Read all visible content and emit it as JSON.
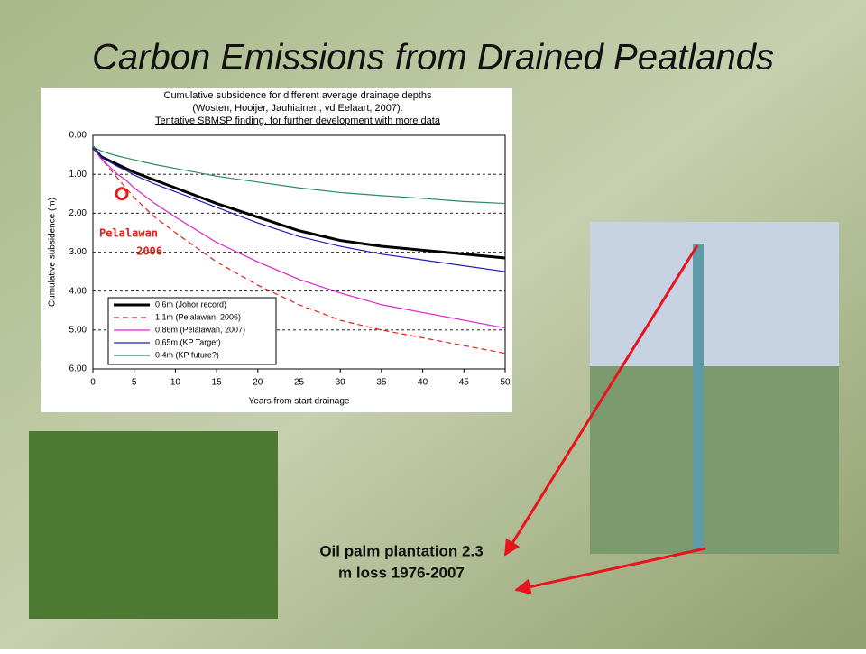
{
  "slide_title": "Carbon Emissions from Drained Peatlands",
  "caption": [
    "Oil palm plantation 2.3",
    "m loss      1976-2007"
  ],
  "chart_data": {
    "type": "line",
    "title": [
      "Cumulative subsidence for different average drainage depths",
      "(Wosten, Hooijer, Jauhiainen, vd Eelaart, 2007).",
      "Tentative SBMSP finding, for further development with more data"
    ],
    "x_label": "Years from start drainage",
    "y_label": "Cumulative subsidence (m)",
    "x": [
      0,
      1,
      2,
      3,
      4,
      5,
      7.5,
      10,
      15,
      20,
      25,
      30,
      35,
      40,
      45,
      50
    ],
    "xlim": [
      0,
      50
    ],
    "xticks": [
      0,
      5,
      10,
      15,
      20,
      25,
      30,
      35,
      40,
      45,
      50
    ],
    "ylim": [
      0,
      6
    ],
    "y_inverted": true,
    "yticks": [
      {
        "value": 0,
        "label": "0.00"
      },
      {
        "value": 1,
        "label": "1.00"
      },
      {
        "value": 2,
        "label": "2.00"
      },
      {
        "value": 3,
        "label": "3.00"
      },
      {
        "value": 4,
        "label": "4.00"
      },
      {
        "value": 5,
        "label": "5.00"
      },
      {
        "value": 6,
        "label": "6.00"
      }
    ],
    "grid": true,
    "series": [
      {
        "name": "0.6m (Johor record)",
        "color": "#000000",
        "width": 3,
        "dashed": false,
        "values": [
          0.3,
          0.55,
          0.65,
          0.75,
          0.85,
          0.95,
          1.15,
          1.35,
          1.75,
          2.1,
          2.45,
          2.7,
          2.85,
          2.95,
          3.05,
          3.15
        ]
      },
      {
        "name": "1.1m (Pelalawan, 2006)",
        "color": "#e0201a",
        "width": 1.2,
        "dashed": true,
        "values": [
          0.3,
          0.6,
          0.85,
          1.1,
          1.35,
          1.6,
          2.1,
          2.5,
          3.25,
          3.85,
          4.35,
          4.75,
          5.0,
          5.2,
          5.4,
          5.6
        ]
      },
      {
        "name": "0.86m (Pelalawan, 2007)",
        "color": "#e020d0",
        "width": 1.2,
        "dashed": false,
        "values": [
          0.3,
          0.6,
          0.8,
          1.0,
          1.15,
          1.35,
          1.75,
          2.1,
          2.75,
          3.25,
          3.7,
          4.05,
          4.35,
          4.55,
          4.75,
          4.95
        ]
      },
      {
        "name": "0.65m (KP Target)",
        "color": "#2020b0",
        "width": 1.2,
        "dashed": false,
        "values": [
          0.3,
          0.55,
          0.68,
          0.8,
          0.9,
          1.02,
          1.25,
          1.45,
          1.85,
          2.25,
          2.6,
          2.85,
          3.05,
          3.2,
          3.35,
          3.5
        ]
      },
      {
        "name": "0.4m (KP future?)",
        "color": "#2a8a5a",
        "width": 1.2,
        "dashed": false,
        "values": [
          0.3,
          0.4,
          0.47,
          0.53,
          0.58,
          0.63,
          0.75,
          0.85,
          1.05,
          1.2,
          1.35,
          1.47,
          1.55,
          1.62,
          1.7,
          1.75
        ]
      }
    ],
    "marker": {
      "x": 3.5,
      "y": 1.5,
      "color": "#e0201a"
    },
    "annotation": [
      "Pelalawan",
      "2006"
    ]
  }
}
